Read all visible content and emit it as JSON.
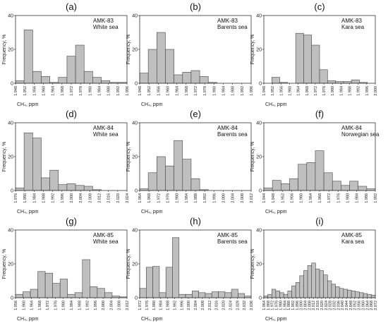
{
  "chart_data": [
    {
      "type": "bar",
      "letter": "(a)",
      "annotation": [
        "AMK-83",
        "White sea"
      ],
      "xlabel": "CH₄, ppm",
      "ylabel": "Frequency, %",
      "ylim": [
        0,
        40
      ],
      "yticks": [
        0,
        20,
        40
      ],
      "categories": [
        "1.948",
        "1.952",
        "1.956",
        "1.960",
        "1.964",
        "1.968",
        "1.972",
        "1.976",
        "1.980",
        "1.984",
        "1.988",
        "1.992",
        "1.996"
      ],
      "values": [
        1.5,
        31.5,
        7,
        4,
        0.5,
        3.5,
        16,
        22.5,
        7,
        3.5,
        1.5,
        0.5,
        0.5
      ]
    },
    {
      "type": "bar",
      "letter": "(b)",
      "annotation": [
        "AMK-83",
        "Barents sea"
      ],
      "xlabel": "CH₄, ppm",
      "ylabel": "Frequency, %",
      "ylim": [
        0,
        40
      ],
      "yticks": [
        0,
        20,
        40
      ],
      "categories": [
        "1.948",
        "1.952",
        "1.956",
        "1.960",
        "1.964",
        "1.968",
        "1.972",
        "1.976",
        "1.980",
        "1.984",
        "1.988",
        "1.992",
        "1.996"
      ],
      "values": [
        6,
        20,
        30,
        20,
        5,
        6.5,
        7.5,
        4,
        0.5,
        0,
        0,
        0,
        0
      ]
    },
    {
      "type": "bar",
      "letter": "(c)",
      "annotation": [
        "AMK-83",
        "Kara sea"
      ],
      "xlabel": "CH₄, ppm",
      "ylabel": "Frequency, %",
      "ylim": [
        0,
        40
      ],
      "yticks": [
        0,
        20,
        40
      ],
      "categories": [
        "1.948",
        "1.952",
        "1.956",
        "1.960",
        "1.964",
        "1.968",
        "1.972",
        "1.976",
        "1.980",
        "1.984",
        "1.988",
        "1.992",
        "1.996",
        "2.000"
      ],
      "values": [
        0,
        3.5,
        0.5,
        0,
        29.5,
        28.5,
        22.5,
        8,
        1.5,
        1,
        1,
        2,
        0.5,
        0
      ]
    },
    {
      "type": "bar",
      "letter": "(d)",
      "annotation": [
        "AMK-84",
        "White sea"
      ],
      "xlabel": "CH₄, ppm",
      "ylabel": "Frequency, %",
      "ylim": [
        0,
        40
      ],
      "yticks": [
        0,
        20,
        40
      ],
      "categories": [
        "1.976",
        "1.980",
        "1.984",
        "1.988",
        "1.992",
        "1.996",
        "2.000",
        "2.004",
        "2.008",
        "2.012",
        "2.016",
        "2.020",
        "2.024"
      ],
      "values": [
        1.5,
        34,
        31,
        7.5,
        12,
        3.5,
        4,
        3,
        2.5,
        0.5,
        0,
        0,
        0
      ]
    },
    {
      "type": "bar",
      "letter": "(e)",
      "annotation": [
        "AMK-84",
        "Barents sea"
      ],
      "xlabel": "CH₄, ppm",
      "ylabel": "Frequency, %",
      "ylim": [
        0,
        40
      ],
      "yticks": [
        0,
        20,
        40
      ],
      "categories": [
        "1.964",
        "1.968",
        "1.972",
        "1.976",
        "1.980",
        "1.984",
        "1.988",
        "1.992",
        "1.996",
        "2.000",
        "2.004",
        "2.008",
        "2.012"
      ],
      "values": [
        1,
        10.5,
        20,
        14.5,
        29.5,
        18.5,
        7,
        0.5,
        0,
        0,
        0,
        0,
        0
      ]
    },
    {
      "type": "bar",
      "letter": "(f)",
      "annotation": [
        "AMK-84",
        "Norwegian sea"
      ],
      "xlabel": "CH₄, ppm",
      "ylabel": "Frequency, %",
      "ylim": [
        0,
        40
      ],
      "yticks": [
        0,
        20,
        40
      ],
      "categories": [
        "1.944",
        "1.948",
        "1.952",
        "1.956",
        "1.960",
        "1.964",
        "1.968",
        "1.972",
        "1.976",
        "1.980",
        "1.984",
        "1.988",
        "1.992"
      ],
      "values": [
        1.5,
        6,
        4,
        7,
        15.5,
        16.5,
        23.5,
        10.5,
        5.5,
        3,
        5.5,
        2.5,
        1
      ]
    },
    {
      "type": "bar",
      "letter": "(g)",
      "annotation": [
        "AMK-85",
        "White sea"
      ],
      "xlabel": "CH₄, ppm",
      "ylabel": "Frequency, %",
      "ylim": [
        0,
        40
      ],
      "yticks": [
        0,
        20,
        40
      ],
      "categories": [
        "1.956",
        "1.960",
        "1.964",
        "1.968",
        "1.972",
        "1.976",
        "1.980",
        "1.984",
        "1.988",
        "1.992",
        "1.996",
        "2.000",
        "2.004",
        "2.008",
        "2.012"
      ],
      "values": [
        2,
        3.5,
        5,
        15.5,
        14.5,
        8.5,
        11,
        2,
        3,
        22.5,
        6.5,
        5.5,
        3,
        1,
        0.5
      ]
    },
    {
      "type": "bar",
      "letter": "(h)",
      "annotation": [
        "AMK-85",
        "Barents sea"
      ],
      "xlabel": "CH₄, ppm",
      "ylabel": "Frequency, %",
      "ylim": [
        0,
        40
      ],
      "yticks": [
        0,
        20,
        40
      ],
      "categories": [
        "1.972",
        "1.976",
        "1.980",
        "1.984",
        "1.988",
        "1.992",
        "1.996",
        "2.000",
        "2.004",
        "2.008",
        "2.012",
        "2.016",
        "2.020",
        "2.024",
        "2.028",
        "2.032",
        "2.036"
      ],
      "values": [
        5.5,
        18,
        18.5,
        3,
        18,
        35.5,
        2,
        2,
        4,
        3,
        2.5,
        3.5,
        3.5,
        3,
        5,
        2.5,
        1
      ]
    },
    {
      "type": "bar",
      "letter": "(i)",
      "annotation": [
        "AMK-85",
        "Kara sea"
      ],
      "xlabel": "CH₄, ppm",
      "ylabel": "Frequency, %",
      "ylim": [
        0,
        40
      ],
      "yticks": [
        0,
        20,
        40
      ],
      "categories": [
        "1.964",
        "1.968",
        "1.972",
        "1.976",
        "1.980",
        "1.984",
        "1.988",
        "1.992",
        "1.996",
        "2.000",
        "2.004",
        "2.008",
        "2.012",
        "2.016",
        "2.020",
        "2.024",
        "2.028",
        "2.032",
        "2.036",
        "2.040",
        "2.044",
        "2.048",
        "2.052",
        "2.056",
        "2.060",
        "2.064",
        "2.068",
        "2.072"
      ],
      "values": [
        1,
        2,
        5,
        4,
        3,
        2,
        4,
        7,
        9,
        13,
        16,
        19,
        20.5,
        17,
        16,
        13.5,
        10,
        8,
        6.5,
        5.5,
        5,
        4.5,
        4,
        3.5,
        3,
        2.5,
        2,
        1.5
      ]
    }
  ]
}
